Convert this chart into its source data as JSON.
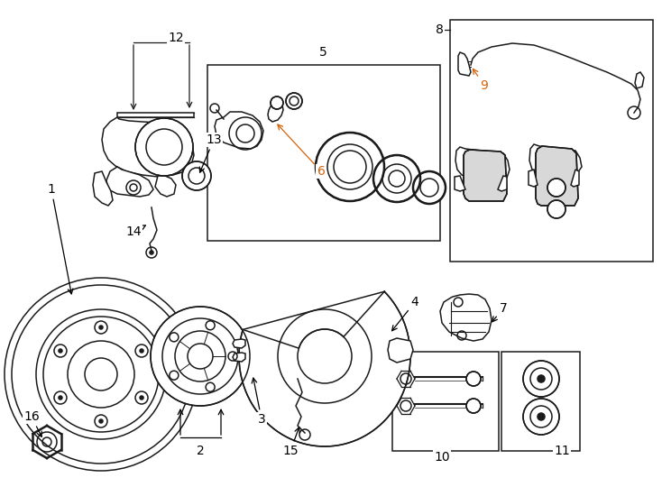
{
  "bg_color": "#ffffff",
  "line_color": "#1a1a1a",
  "label_color_9": "#d4620a",
  "figsize": [
    7.34,
    5.4
  ],
  "dpi": 100,
  "lw": 1.1,
  "lw2": 1.8,
  "fs": 10
}
